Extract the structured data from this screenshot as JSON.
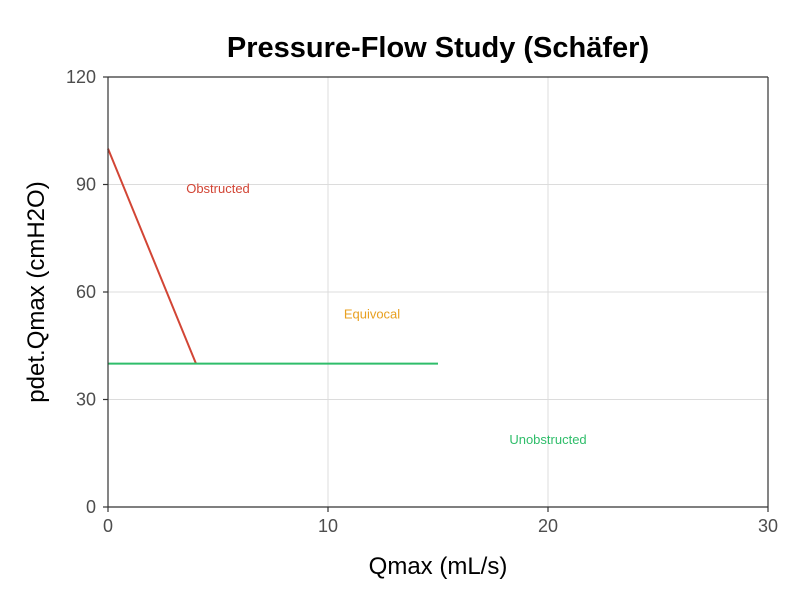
{
  "chart_data": {
    "type": "line",
    "title": "Pressure-Flow Study (Schäfer)",
    "xlabel": "Qmax (mL/s)",
    "ylabel": "pdet.Qmax (cmH2O)",
    "xlim": [
      0,
      30
    ],
    "ylim": [
      0,
      120
    ],
    "x_ticks": [
      0,
      10,
      20,
      30
    ],
    "y_ticks": [
      0,
      30,
      60,
      90,
      120
    ],
    "grid": true,
    "legend": "none",
    "series": [
      {
        "color": "#d24535",
        "x": [
          0,
          4
        ],
        "y": [
          100,
          40
        ]
      },
      {
        "color": "#2fbd6a",
        "x": [
          0,
          15
        ],
        "y": [
          40,
          40
        ]
      }
    ],
    "annotations": [
      {
        "text": "Obstructed",
        "x": 5,
        "y": 89,
        "color": "#d24535"
      },
      {
        "text": "Equivocal",
        "x": 12,
        "y": 54,
        "color": "#e8a020"
      },
      {
        "text": "Unobstructed",
        "x": 20,
        "y": 19,
        "color": "#2fbd6a"
      }
    ]
  }
}
